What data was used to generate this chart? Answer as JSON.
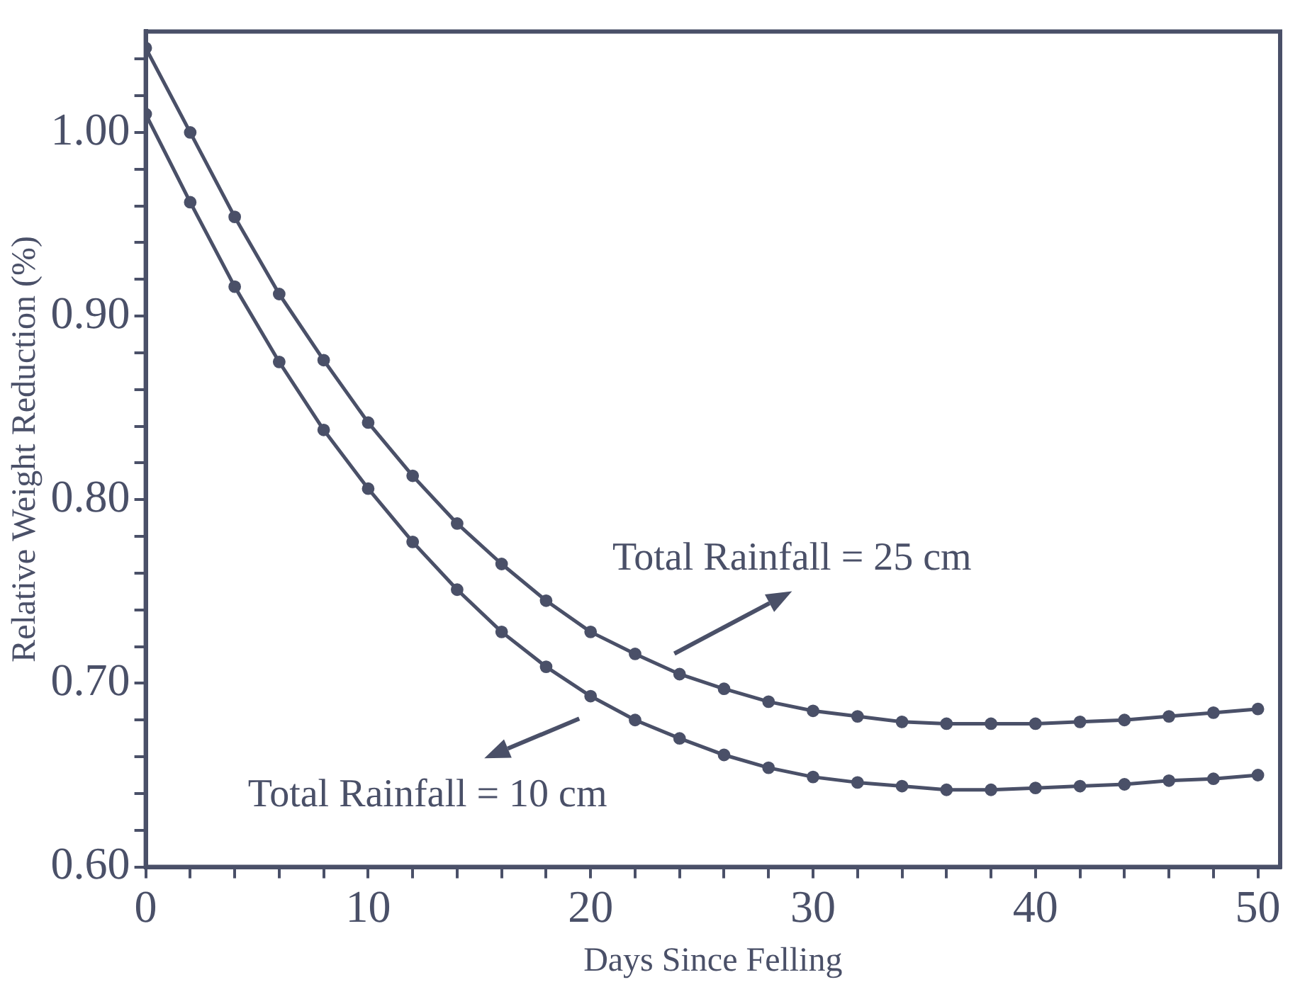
{
  "chart_data": {
    "type": "line",
    "xlabel": "Days Since Felling",
    "ylabel": "Relative Weight Reduction (%)",
    "x": [
      0,
      2,
      4,
      6,
      8,
      10,
      12,
      14,
      16,
      18,
      20,
      22,
      24,
      26,
      28,
      30,
      32,
      34,
      36,
      38,
      40,
      42,
      44,
      46,
      48,
      50
    ],
    "series": [
      {
        "color": "#4a5068",
        "values": [
          1.046,
          1.0,
          0.954,
          0.912,
          0.876,
          0.842,
          0.813,
          0.787,
          0.765,
          0.745,
          0.728,
          0.716,
          0.705,
          0.697,
          0.69,
          0.685,
          0.682,
          0.679,
          0.678,
          0.678,
          0.678,
          0.679,
          0.68,
          0.682,
          0.684,
          0.686
        ]
      },
      {
        "color": "#4a5068",
        "values": [
          1.01,
          0.962,
          0.916,
          0.875,
          0.838,
          0.806,
          0.777,
          0.751,
          0.728,
          0.709,
          0.693,
          0.68,
          0.67,
          0.661,
          0.654,
          0.649,
          0.646,
          0.644,
          0.642,
          0.642,
          0.643,
          0.644,
          0.645,
          0.647,
          0.648,
          0.65
        ]
      }
    ],
    "annotations": [
      {
        "text": "Total Rainfall = 25 cm",
        "x": 23,
        "y": 0.71
      },
      {
        "text": "Total Rainfall = 10 cm",
        "x": 20,
        "y": 0.69
      }
    ],
    "xlim": [
      0,
      51
    ],
    "ylim": [
      0.6,
      1.055
    ],
    "xticks": [
      0,
      {
        "value": 2,
        "label": null
      },
      {
        "value": 4,
        "label": null
      },
      {
        "value": 6,
        "label": null
      },
      {
        "value": 8,
        "label": null
      },
      10,
      {
        "value": 12,
        "label": null
      },
      {
        "value": 14,
        "label": null
      },
      {
        "value": 16,
        "label": null
      },
      {
        "value": 18,
        "label": null
      },
      20,
      {
        "value": 22,
        "label": null
      },
      {
        "value": 24,
        "label": null
      },
      {
        "value": 26,
        "label": null
      },
      {
        "value": 28,
        "label": null
      },
      30,
      {
        "value": 32,
        "label": null
      },
      {
        "value": 34,
        "label": null
      },
      {
        "value": 36,
        "label": null
      },
      {
        "value": 38,
        "label": null
      },
      40,
      {
        "value": 42,
        "label": null
      },
      {
        "value": 44,
        "label": null
      },
      {
        "value": 46,
        "label": null
      },
      {
        "value": 48,
        "label": null
      },
      50
    ],
    "yticks": [
      {
        "value": 0.6,
        "label": "0.60"
      },
      {
        "value": 0.62,
        "label": null
      },
      {
        "value": 0.64,
        "label": null
      },
      {
        "value": 0.66,
        "label": null
      },
      {
        "value": 0.68,
        "label": null
      },
      {
        "value": 0.7,
        "label": "0.70"
      },
      {
        "value": 0.72,
        "label": null
      },
      {
        "value": 0.74,
        "label": null
      },
      {
        "value": 0.76,
        "label": null
      },
      {
        "value": 0.78,
        "label": null
      },
      {
        "value": 0.8,
        "label": "0.80"
      },
      {
        "value": 0.82,
        "label": null
      },
      {
        "value": 0.84,
        "label": null
      },
      {
        "value": 0.86,
        "label": null
      },
      {
        "value": 0.88,
        "label": null
      },
      {
        "value": 0.9,
        "label": "0.90"
      },
      {
        "value": 0.92,
        "label": null
      },
      {
        "value": 0.94,
        "label": null
      },
      {
        "value": 0.96,
        "label": null
      },
      {
        "value": 0.98,
        "label": null
      },
      {
        "value": 1.0,
        "label": "1.00"
      },
      {
        "value": 1.02,
        "label": null
      },
      {
        "value": 1.04,
        "label": null
      }
    ],
    "grid": false,
    "legend": false,
    "marker": "circle",
    "line_style": "solid"
  }
}
